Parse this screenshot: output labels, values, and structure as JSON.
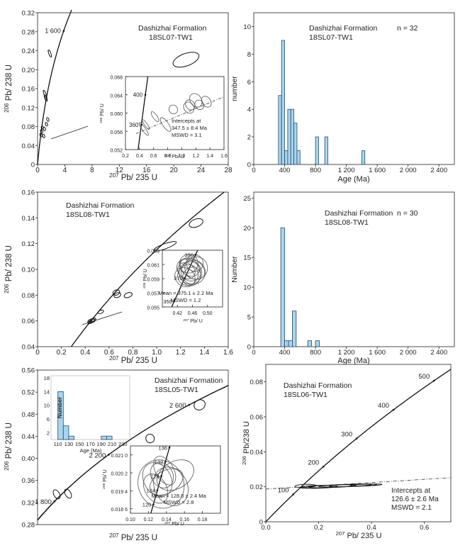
{
  "chart_data": [
    {
      "id": "a",
      "type": "scatter",
      "subtype": "concordia",
      "title": "Dashizhai Formation",
      "subtitle": "18SL07-TW1",
      "xlabel_iso": "207",
      "xlabel_rest": "Pb/ 235 U",
      "ylabel_iso": "206",
      "ylabel_rest": "Pb/ 238 U",
      "xlim": [
        0,
        28
      ],
      "ylim": [
        0,
        0.32
      ],
      "xticks": [
        0,
        4,
        8,
        12,
        16,
        20,
        24,
        28
      ],
      "yticks": [
        0,
        0.04,
        0.08,
        0.12,
        0.16,
        0.2,
        0.24,
        0.28,
        0.32
      ],
      "ytick_labels": [
        "0",
        "0.04",
        "0.08",
        "0.12",
        "0.16",
        "0.20",
        "0.24",
        "0.28",
        "0.32"
      ],
      "concordia_age_labels": [
        {
          "age": 1600,
          "text": "1 600"
        }
      ],
      "ellipses": [
        {
          "x": 21.8,
          "y": 0.221,
          "rx": 2.0,
          "ry": 0.013
        },
        {
          "x": 1.8,
          "y": 0.234,
          "rx": 0.14,
          "ry": 0.008
        },
        {
          "x": 1.1,
          "y": 0.148,
          "rx": 0.15,
          "ry": 0.009
        },
        {
          "x": 1.2,
          "y": 0.14,
          "rx": 0.12,
          "ry": 0.007
        },
        {
          "x": 1.5,
          "y": 0.095,
          "rx": 0.12,
          "ry": 0.004
        },
        {
          "x": 1.3,
          "y": 0.085,
          "rx": 0.12,
          "ry": 0.004
        },
        {
          "x": 0.7,
          "y": 0.078,
          "rx": 0.14,
          "ry": 0.003
        },
        {
          "x": 0.6,
          "y": 0.07,
          "rx": 0.14,
          "ry": 0.004
        },
        {
          "x": 1.0,
          "y": 0.075,
          "rx": 0.14,
          "ry": 0.004
        },
        {
          "x": 0.5,
          "y": 0.062,
          "rx": 0.12,
          "ry": 0.004
        },
        {
          "x": 0.9,
          "y": 0.06,
          "rx": 0.14,
          "ry": 0.004
        }
      ],
      "inset": {
        "xlim": [
          0.2,
          1.6
        ],
        "ylim": [
          0.052,
          0.068
        ],
        "xticks": [
          0.2,
          0.4,
          0.6,
          0.8,
          1.0,
          1.2,
          1.4,
          1.6
        ],
        "xtick_labels": [
          "0.2",
          "0.4",
          "0.6",
          "0.8",
          "1.0",
          "1.2",
          "1.4",
          "1.6"
        ],
        "yticks": [
          0.052,
          0.056,
          0.06,
          0.064,
          0.068
        ],
        "ytick_labels": [
          "0.052",
          "0.056",
          "0.060",
          "0.064",
          "0.068"
        ],
        "xlabel_iso": "207",
        "xlabel_rest": "Pb/ U",
        "xlabel_iso2": "235",
        "ylabel_iso": "206",
        "ylabel_rest": "Pb/ U",
        "ylabel_iso2": "238",
        "concordia_age_labels": [
          {
            "age": 400,
            "text": "400"
          },
          {
            "age": 360,
            "text": "360"
          }
        ],
        "annotation": [
          "Intercepts at",
          "347.5 ± 8.4 Ma",
          "MSWD = 3.1"
        ],
        "discordia": [
          [
            0.35,
            0.0555
          ],
          [
            1.6,
            0.0636
          ]
        ],
        "ellipses": [
          {
            "x": 0.46,
            "y": 0.0565,
            "rx": 0.025,
            "ry": 0.0017
          },
          {
            "x": 0.49,
            "y": 0.0575,
            "rx": 0.02,
            "ry": 0.0013
          },
          {
            "x": 0.62,
            "y": 0.0592,
            "rx": 0.03,
            "ry": 0.0013
          },
          {
            "x": 0.77,
            "y": 0.0575,
            "rx": 0.04,
            "ry": 0.0018
          },
          {
            "x": 0.88,
            "y": 0.0608,
            "rx": 0.06,
            "ry": 0.001
          },
          {
            "x": 1.1,
            "y": 0.0612,
            "rx": 0.07,
            "ry": 0.0013
          },
          {
            "x": 1.12,
            "y": 0.0618,
            "rx": 0.06,
            "ry": 0.0012
          },
          {
            "x": 1.2,
            "y": 0.0628,
            "rx": 0.08,
            "ry": 0.0016
          },
          {
            "x": 1.25,
            "y": 0.0618,
            "rx": 0.06,
            "ry": 0.0011
          },
          {
            "x": 1.35,
            "y": 0.0625,
            "rx": 0.06,
            "ry": 0.0013
          }
        ]
      }
    },
    {
      "id": "b",
      "type": "bar",
      "subtype": "histogram",
      "title": "Dashizhai Formation",
      "subtitle": "18SL07-TW1",
      "n_label": "n = 32",
      "xlabel": "Age (Ma)",
      "ylabel": "number",
      "xlim": [
        0,
        2600
      ],
      "ylim": [
        0,
        11
      ],
      "xticks": [
        0,
        400,
        800,
        1200,
        1600,
        2000,
        2400
      ],
      "xtick_labels": [
        "0",
        "400",
        "800",
        "1 200",
        "1 600",
        "2 000",
        "2 400"
      ],
      "yticks": [
        0,
        2,
        4,
        6,
        8,
        10
      ],
      "bin_width": 40,
      "bins": [
        {
          "start": 320,
          "value": 5
        },
        {
          "start": 360,
          "value": 9
        },
        {
          "start": 400,
          "value": 1
        },
        {
          "start": 440,
          "value": 4
        },
        {
          "start": 480,
          "value": 4
        },
        {
          "start": 520,
          "value": 3
        },
        {
          "start": 560,
          "value": 1
        },
        {
          "start": 800,
          "value": 2
        },
        {
          "start": 920,
          "value": 2
        },
        {
          "start": 1400,
          "value": 1
        }
      ],
      "bar_color": "#a8d5ef"
    },
    {
      "id": "c",
      "type": "scatter",
      "subtype": "concordia",
      "title": "Dashizhai Formation",
      "subtitle": "18SL08-TW1",
      "xlabel_iso": "207",
      "xlabel_rest": "Pb/ 235 U",
      "ylabel_iso": "206",
      "ylabel_rest": "Pb/ 238 U",
      "xlim": [
        0,
        1.6
      ],
      "ylim": [
        0.04,
        0.16
      ],
      "xticks": [
        0,
        0.2,
        0.4,
        0.6,
        0.8,
        1.0,
        1.2,
        1.4,
        1.6
      ],
      "xtick_labels": [
        "0",
        "0.2",
        "0.4",
        "0.6",
        "0.8",
        "1.0",
        "1.2",
        "1.4",
        "1.6"
      ],
      "yticks": [
        0.04,
        0.06,
        0.08,
        0.1,
        0.12,
        0.14,
        0.16
      ],
      "ytick_labels": [
        "0.04",
        "0.06",
        "0.08",
        "0.10",
        "0.12",
        "0.14",
        "0.16"
      ],
      "ellipses": [
        {
          "x": 1.33,
          "y": 0.136,
          "rx": 0.06,
          "ry": 0.003
        },
        {
          "x": 1.07,
          "y": 0.118,
          "rx": 0.1,
          "ry": 0.002
        },
        {
          "x": 0.66,
          "y": 0.082,
          "rx": 0.03,
          "ry": 0.002
        },
        {
          "x": 0.67,
          "y": 0.08,
          "rx": 0.03,
          "ry": 0.0018
        },
        {
          "x": 0.76,
          "y": 0.08,
          "rx": 0.035,
          "ry": 0.0018
        },
        {
          "x": 0.53,
          "y": 0.067,
          "rx": 0.025,
          "ry": 0.0012
        },
        {
          "x": 0.45,
          "y": 0.06,
          "rx": 0.03,
          "ry": 0.0015
        },
        {
          "x": 0.46,
          "y": 0.06,
          "rx": 0.025,
          "ry": 0.0012
        },
        {
          "x": 0.44,
          "y": 0.059,
          "rx": 0.02,
          "ry": 0.001
        },
        {
          "x": 0.47,
          "y": 0.061,
          "rx": 0.02,
          "ry": 0.0011
        }
      ],
      "inset": {
        "xlim": [
          0.38,
          0.54
        ],
        "ylim": [
          0.055,
          0.063
        ],
        "xticks": [
          0.42,
          0.46,
          0.5
        ],
        "xtick_labels": [
          "0.42",
          "0.46",
          "0.50"
        ],
        "yticks": [
          0.055,
          0.057,
          0.059,
          0.061,
          0.063
        ],
        "ytick_labels": [
          "0.055",
          "0.057",
          "0.059",
          "0.061",
          "0.063"
        ],
        "ylabel_iso": "206",
        "ylabel_rest": "Pb/ U",
        "ylabel_iso2": "238",
        "xlabel_iso": "207",
        "xlabel_rest": "Pb/ U",
        "xlabel_iso2": "235",
        "concordia_age_labels": [
          {
            "age": 390,
            "text": "390"
          },
          {
            "age": 370,
            "text": "370"
          },
          {
            "age": 350,
            "text": "350"
          }
        ],
        "annotation": [
          "Mean = 375.1 ± 2.2 Ma",
          "MSWD = 1.2"
        ],
        "ellipses": [
          {
            "x": 0.45,
            "y": 0.0602,
            "rx": 0.026,
            "ry": 0.0018
          },
          {
            "x": 0.455,
            "y": 0.0598,
            "rx": 0.03,
            "ry": 0.0016
          },
          {
            "x": 0.46,
            "y": 0.0604,
            "rx": 0.024,
            "ry": 0.0019
          },
          {
            "x": 0.448,
            "y": 0.0595,
            "rx": 0.028,
            "ry": 0.0014
          },
          {
            "x": 0.452,
            "y": 0.0606,
            "rx": 0.022,
            "ry": 0.0015
          },
          {
            "x": 0.462,
            "y": 0.0599,
            "rx": 0.032,
            "ry": 0.0017
          },
          {
            "x": 0.444,
            "y": 0.0601,
            "rx": 0.02,
            "ry": 0.0013
          },
          {
            "x": 0.458,
            "y": 0.0593,
            "rx": 0.026,
            "ry": 0.0012
          },
          {
            "x": 0.45,
            "y": 0.0611,
            "rx": 0.025,
            "ry": 0.0013
          },
          {
            "x": 0.47,
            "y": 0.0605,
            "rx": 0.03,
            "ry": 0.0016
          },
          {
            "x": 0.44,
            "y": 0.0592,
            "rx": 0.024,
            "ry": 0.0015
          },
          {
            "x": 0.466,
            "y": 0.0612,
            "rx": 0.022,
            "ry": 0.0012
          }
        ]
      }
    },
    {
      "id": "d",
      "type": "bar",
      "subtype": "histogram",
      "title": "Dashizhai Formation",
      "subtitle": "18SL08-TW1",
      "n_label": "n = 30",
      "xlabel": "Age (Ma)",
      "ylabel": "Number",
      "xlim": [
        0,
        2600
      ],
      "ylim": [
        0,
        26
      ],
      "xticks": [
        0,
        400,
        800,
        1200,
        1600,
        2000,
        2400
      ],
      "xtick_labels": [
        "0",
        "400",
        "800",
        "1 200",
        "1 600",
        "2 000",
        "2 400"
      ],
      "yticks": [
        0,
        5,
        10,
        15,
        20,
        25
      ],
      "bin_width": 50,
      "bins": [
        {
          "start": 350,
          "value": 20
        },
        {
          "start": 400,
          "value": 1
        },
        {
          "start": 450,
          "value": 1
        },
        {
          "start": 500,
          "value": 6
        },
        {
          "start": 700,
          "value": 1
        },
        {
          "start": 800,
          "value": 1
        }
      ],
      "bar_color": "#a8d5ef"
    },
    {
      "id": "e",
      "type": "scatter",
      "subtype": "concordia",
      "title": "Dashizhai Formation",
      "subtitle": "18SL05-TW1",
      "xlabel_iso": "207",
      "xlabel_rest": "Pb/ 235 U",
      "ylabel_iso": "206",
      "ylabel_rest": "Pb/ 238 U",
      "xlim": [
        4,
        14
      ],
      "ylim": [
        0.28,
        0.56
      ],
      "xticks": [],
      "yticks": [
        0.28,
        0.32,
        0.36,
        0.4,
        0.44,
        0.48,
        0.52,
        0.56
      ],
      "ytick_labels": [
        "0.28",
        "0.32",
        "0.36",
        "0.40",
        "0.44",
        "0.48",
        "0.52",
        "0.56"
      ],
      "concordia_age_labels": [
        {
          "age": 2600,
          "text": "2 600"
        },
        {
          "age": 2200,
          "text": "2 200"
        },
        {
          "age": 1800,
          "text": "1 800"
        }
      ],
      "ellipses": [
        {
          "x": 12.5,
          "y": 0.497,
          "rx": 0.3,
          "ry": 0.009
        },
        {
          "x": 9.9,
          "y": 0.436,
          "rx": 0.22,
          "ry": 0.008
        },
        {
          "x": 5.6,
          "y": 0.336,
          "rx": 0.15,
          "ry": 0.009
        },
        {
          "x": 5.0,
          "y": 0.335,
          "rx": 0.15,
          "ry": 0.009
        }
      ],
      "inset_hist": {
        "xlabel": "Age (Ma)",
        "ylabel": "Number",
        "xlim": [
          100,
          240
        ],
        "ylim": [
          0,
          18
        ],
        "xticks": [
          110,
          130,
          150,
          170,
          190,
          210,
          230
        ],
        "yticks": [
          2,
          6,
          10,
          14,
          18
        ],
        "bin_width": 10,
        "bins": [
          {
            "start": 110,
            "value": 14
          },
          {
            "start": 120,
            "value": 4
          },
          {
            "start": 130,
            "value": 1
          },
          {
            "start": 190,
            "value": 1
          },
          {
            "start": 200,
            "value": 1
          }
        ]
      },
      "inset": {
        "xlim": [
          0.1,
          0.2
        ],
        "ylim": [
          0.0184,
          0.0214
        ],
        "xticks": [
          0.1,
          0.12,
          0.14,
          0.16,
          0.18
        ],
        "xtick_labels": [
          "0.10",
          "0.12",
          "0.14",
          "0.16",
          "0.18"
        ],
        "yticks": [
          0.0186,
          0.0194,
          0.0202,
          0.021
        ],
        "ytick_labels": [
          "0.018 6",
          "0.019 4",
          "0.020 2",
          "0.021 0"
        ],
        "xlabel_iso": "207",
        "xlabel_rest": "Pb/ U",
        "xlabel_iso2": "235",
        "ylabel_iso": "206",
        "ylabel_rest": "Pb/ U",
        "ylabel_iso2": "238",
        "concordia_age_labels": [
          {
            "age": 136,
            "text": "136"
          },
          {
            "age": 132,
            "text": "132"
          },
          {
            "age": 128,
            "text": "128"
          },
          {
            "age": 124,
            "text": "124"
          },
          {
            "age": 120,
            "text": "120"
          }
        ],
        "annotation": [
          "Mean = 128.0 ± 2.4 Ma",
          "MSWD = 2.8"
        ],
        "ellipses": [
          {
            "x": 0.135,
            "y": 0.0201,
            "rx": 0.012,
            "ry": 0.0006
          },
          {
            "x": 0.14,
            "y": 0.0198,
            "rx": 0.02,
            "ry": 0.0005
          },
          {
            "x": 0.13,
            "y": 0.0199,
            "rx": 0.015,
            "ry": 0.0008
          },
          {
            "x": 0.138,
            "y": 0.0203,
            "rx": 0.01,
            "ry": 0.0007
          },
          {
            "x": 0.145,
            "y": 0.0196,
            "rx": 0.018,
            "ry": 0.0009
          },
          {
            "x": 0.128,
            "y": 0.0195,
            "rx": 0.012,
            "ry": 0.0007
          },
          {
            "x": 0.15,
            "y": 0.0201,
            "rx": 0.022,
            "ry": 0.0006
          },
          {
            "x": 0.134,
            "y": 0.0197,
            "rx": 0.025,
            "ry": 0.0011
          }
        ]
      }
    },
    {
      "id": "f",
      "type": "scatter",
      "subtype": "concordia",
      "title": "Dashizhai Formation",
      "subtitle": "18SL06-TW1",
      "xlabel_iso": "207",
      "xlabel_rest": "Pb/ 235 U",
      "ylabel_iso": "206",
      "ylabel_rest": "Pb/238 U",
      "xlim": [
        0,
        0.7
      ],
      "ylim": [
        0,
        0.09
      ],
      "xticks": [
        0,
        0.2,
        0.4,
        0.6
      ],
      "xtick_labels": [
        "0.0",
        "0.2",
        "0.4",
        "0.6"
      ],
      "yticks": [
        0,
        0.02,
        0.04,
        0.06,
        0.08
      ],
      "ytick_labels": [
        "0",
        "0.02",
        "0.04",
        "0.06",
        "0.08"
      ],
      "concordia_age_labels": [
        {
          "age": 500,
          "text": "500"
        },
        {
          "age": 400,
          "text": "400"
        },
        {
          "age": 300,
          "text": "300"
        },
        {
          "age": 200,
          "text": "200"
        },
        {
          "age": 100,
          "text": "100"
        }
      ],
      "annotation": [
        "Intercepts at",
        "126.6 ± 2.6 Ma",
        "MSWD = 2.1"
      ],
      "discordia": [
        [
          0.0,
          0.0187
        ],
        [
          0.7,
          0.0252
        ]
      ],
      "ellipses": [
        {
          "x": 0.15,
          "y": 0.0205,
          "rx": 0.04,
          "ry": 0.0009
        },
        {
          "x": 0.2,
          "y": 0.02,
          "rx": 0.07,
          "ry": 0.0008
        },
        {
          "x": 0.25,
          "y": 0.0203,
          "rx": 0.09,
          "ry": 0.0007
        },
        {
          "x": 0.3,
          "y": 0.0207,
          "rx": 0.1,
          "ry": 0.0006
        },
        {
          "x": 0.33,
          "y": 0.0208,
          "rx": 0.09,
          "ry": 0.0006
        },
        {
          "x": 0.38,
          "y": 0.021,
          "rx": 0.06,
          "ry": 0.0005
        }
      ]
    }
  ]
}
